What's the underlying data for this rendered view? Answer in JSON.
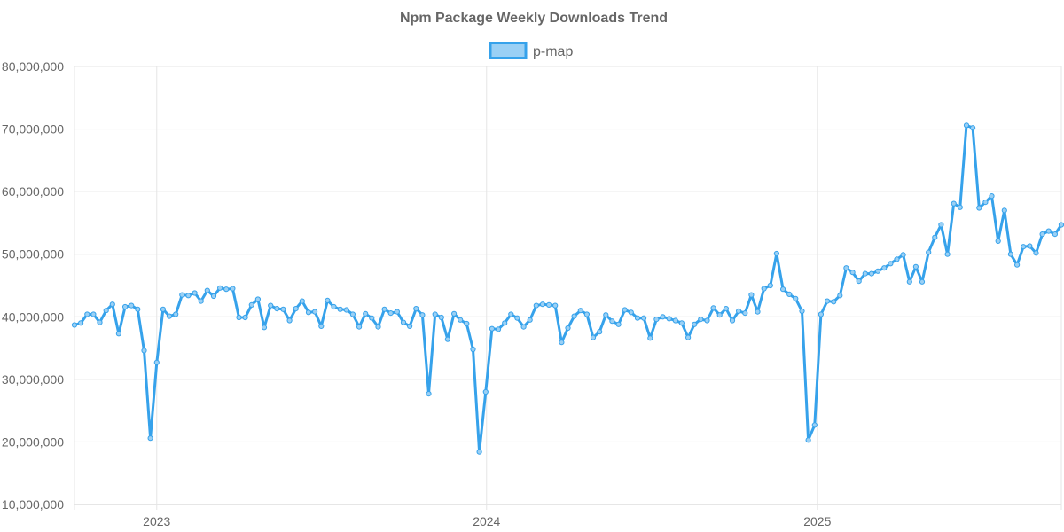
{
  "colors": {
    "series": "#36A2EB",
    "series_fill": "#9AD0F5",
    "grid": "#e5e5e5",
    "text": "#666666"
  },
  "chart_data": {
    "type": "line",
    "title": "Npm Package Weekly Downloads Trend",
    "xlabel": "",
    "ylabel": "",
    "x_axis": {
      "type": "time",
      "range": [
        "2022-10-02",
        "2025-09-28"
      ],
      "tick_labels": [
        "2023",
        "2024",
        "2025"
      ]
    },
    "ylim": [
      10000000,
      80000000
    ],
    "y_tick_labels": [
      "10,000,000",
      "20,000,000",
      "30,000,000",
      "40,000,000",
      "50,000,000",
      "60,000,000",
      "70,000,000",
      "80,000,000"
    ],
    "grid": true,
    "legend": {
      "position": "top-center"
    },
    "series": [
      {
        "name": "p-map",
        "color": "#36A2EB",
        "points": [
          [
            "2022-10-02",
            38700000
          ],
          [
            "2022-10-09",
            39000000
          ],
          [
            "2022-10-16",
            40400000
          ],
          [
            "2022-10-23",
            40400000
          ],
          [
            "2022-10-30",
            39100000
          ],
          [
            "2022-11-06",
            41000000
          ],
          [
            "2022-11-13",
            42000000
          ],
          [
            "2022-11-20",
            37300000
          ],
          [
            "2022-11-27",
            41600000
          ],
          [
            "2022-12-04",
            41800000
          ],
          [
            "2022-12-11",
            41200000
          ],
          [
            "2022-12-18",
            34600000
          ],
          [
            "2022-12-25",
            20600000
          ],
          [
            "2023-01-01",
            32700000
          ],
          [
            "2023-01-08",
            41200000
          ],
          [
            "2023-01-15",
            40100000
          ],
          [
            "2023-01-22",
            40400000
          ],
          [
            "2023-01-29",
            43500000
          ],
          [
            "2023-02-05",
            43400000
          ],
          [
            "2023-02-12",
            43800000
          ],
          [
            "2023-02-19",
            42500000
          ],
          [
            "2023-02-26",
            44200000
          ],
          [
            "2023-03-05",
            43300000
          ],
          [
            "2023-03-12",
            44600000
          ],
          [
            "2023-03-19",
            44400000
          ],
          [
            "2023-03-26",
            44500000
          ],
          [
            "2023-04-02",
            39900000
          ],
          [
            "2023-04-09",
            39900000
          ],
          [
            "2023-04-16",
            41900000
          ],
          [
            "2023-04-23",
            42800000
          ],
          [
            "2023-04-30",
            38300000
          ],
          [
            "2023-05-07",
            41800000
          ],
          [
            "2023-05-14",
            41300000
          ],
          [
            "2023-05-21",
            41200000
          ],
          [
            "2023-05-28",
            39400000
          ],
          [
            "2023-06-04",
            41300000
          ],
          [
            "2023-06-11",
            42500000
          ],
          [
            "2023-06-18",
            40700000
          ],
          [
            "2023-06-25",
            40800000
          ],
          [
            "2023-07-02",
            38500000
          ],
          [
            "2023-07-09",
            42600000
          ],
          [
            "2023-07-16",
            41600000
          ],
          [
            "2023-07-23",
            41200000
          ],
          [
            "2023-07-30",
            41100000
          ],
          [
            "2023-08-06",
            40400000
          ],
          [
            "2023-08-13",
            38400000
          ],
          [
            "2023-08-20",
            40500000
          ],
          [
            "2023-08-27",
            39800000
          ],
          [
            "2023-09-03",
            38400000
          ],
          [
            "2023-09-10",
            41200000
          ],
          [
            "2023-09-17",
            40600000
          ],
          [
            "2023-09-24",
            40800000
          ],
          [
            "2023-10-01",
            39100000
          ],
          [
            "2023-10-08",
            38500000
          ],
          [
            "2023-10-15",
            41300000
          ],
          [
            "2023-10-22",
            40300000
          ],
          [
            "2023-10-29",
            27700000
          ],
          [
            "2023-11-05",
            40400000
          ],
          [
            "2023-11-12",
            39900000
          ],
          [
            "2023-11-19",
            36400000
          ],
          [
            "2023-11-26",
            40500000
          ],
          [
            "2023-12-03",
            39500000
          ],
          [
            "2023-12-10",
            38900000
          ],
          [
            "2023-12-17",
            34800000
          ],
          [
            "2023-12-24",
            18400000
          ],
          [
            "2023-12-31",
            28000000
          ],
          [
            "2024-01-07",
            38100000
          ],
          [
            "2024-01-14",
            38000000
          ],
          [
            "2024-01-21",
            39000000
          ],
          [
            "2024-01-28",
            40400000
          ],
          [
            "2024-02-04",
            39800000
          ],
          [
            "2024-02-11",
            38400000
          ],
          [
            "2024-02-18",
            39500000
          ],
          [
            "2024-02-25",
            41800000
          ],
          [
            "2024-03-03",
            42000000
          ],
          [
            "2024-03-10",
            41900000
          ],
          [
            "2024-03-17",
            41800000
          ],
          [
            "2024-03-24",
            35900000
          ],
          [
            "2024-03-31",
            38200000
          ],
          [
            "2024-04-07",
            40100000
          ],
          [
            "2024-04-14",
            41000000
          ],
          [
            "2024-04-21",
            40400000
          ],
          [
            "2024-04-28",
            36700000
          ],
          [
            "2024-05-05",
            37600000
          ],
          [
            "2024-05-12",
            40300000
          ],
          [
            "2024-05-19",
            39300000
          ],
          [
            "2024-05-26",
            38800000
          ],
          [
            "2024-06-02",
            41100000
          ],
          [
            "2024-06-09",
            40700000
          ],
          [
            "2024-06-16",
            39800000
          ],
          [
            "2024-06-23",
            39800000
          ],
          [
            "2024-06-30",
            36600000
          ],
          [
            "2024-07-07",
            39600000
          ],
          [
            "2024-07-14",
            40000000
          ],
          [
            "2024-07-21",
            39700000
          ],
          [
            "2024-07-28",
            39400000
          ],
          [
            "2024-08-04",
            39000000
          ],
          [
            "2024-08-11",
            36700000
          ],
          [
            "2024-08-18",
            38800000
          ],
          [
            "2024-08-25",
            39600000
          ],
          [
            "2024-09-01",
            39400000
          ],
          [
            "2024-09-08",
            41400000
          ],
          [
            "2024-09-15",
            40300000
          ],
          [
            "2024-09-22",
            41300000
          ],
          [
            "2024-09-29",
            39400000
          ],
          [
            "2024-10-06",
            40900000
          ],
          [
            "2024-10-13",
            40600000
          ],
          [
            "2024-10-20",
            43500000
          ],
          [
            "2024-10-27",
            40800000
          ],
          [
            "2024-11-03",
            44500000
          ],
          [
            "2024-11-10",
            45000000
          ],
          [
            "2024-11-17",
            50100000
          ],
          [
            "2024-11-24",
            44400000
          ],
          [
            "2024-12-01",
            43600000
          ],
          [
            "2024-12-08",
            42900000
          ],
          [
            "2024-12-15",
            40900000
          ],
          [
            "2024-12-22",
            20300000
          ],
          [
            "2024-12-29",
            22700000
          ],
          [
            "2025-01-05",
            40400000
          ],
          [
            "2025-01-12",
            42500000
          ],
          [
            "2025-01-19",
            42400000
          ],
          [
            "2025-01-26",
            43400000
          ],
          [
            "2025-02-02",
            47800000
          ],
          [
            "2025-02-09",
            47100000
          ],
          [
            "2025-02-16",
            45700000
          ],
          [
            "2025-02-23",
            46900000
          ],
          [
            "2025-03-02",
            46900000
          ],
          [
            "2025-03-09",
            47300000
          ],
          [
            "2025-03-16",
            47800000
          ],
          [
            "2025-03-23",
            48500000
          ],
          [
            "2025-03-30",
            49200000
          ],
          [
            "2025-04-06",
            49900000
          ],
          [
            "2025-04-13",
            45600000
          ],
          [
            "2025-04-20",
            48000000
          ],
          [
            "2025-04-27",
            45600000
          ],
          [
            "2025-05-04",
            50300000
          ],
          [
            "2025-05-11",
            52700000
          ],
          [
            "2025-05-18",
            54700000
          ],
          [
            "2025-05-25",
            50000000
          ],
          [
            "2025-06-01",
            58100000
          ],
          [
            "2025-06-08",
            57500000
          ],
          [
            "2025-06-15",
            70600000
          ],
          [
            "2025-06-22",
            70200000
          ],
          [
            "2025-06-29",
            57400000
          ],
          [
            "2025-07-06",
            58300000
          ],
          [
            "2025-07-13",
            59300000
          ],
          [
            "2025-07-20",
            52100000
          ],
          [
            "2025-07-27",
            57000000
          ],
          [
            "2025-08-03",
            50000000
          ],
          [
            "2025-08-10",
            48300000
          ],
          [
            "2025-08-17",
            51200000
          ],
          [
            "2025-08-24",
            51300000
          ],
          [
            "2025-08-31",
            50200000
          ],
          [
            "2025-09-07",
            53200000
          ],
          [
            "2025-09-14",
            53700000
          ],
          [
            "2025-09-21",
            53200000
          ],
          [
            "2025-09-28",
            54700000
          ]
        ]
      }
    ]
  }
}
